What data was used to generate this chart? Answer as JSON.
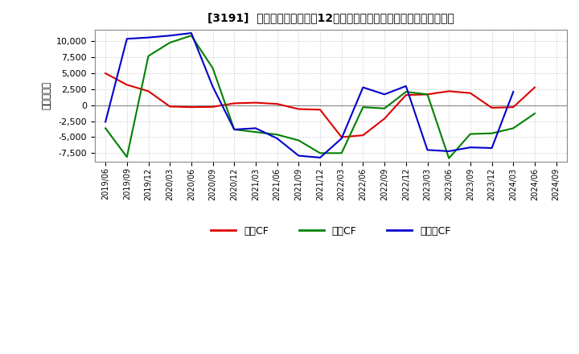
{
  "title": "[3191]  キャッシュフローの12か月移動合計の対前年同期増減額の推移",
  "ylabel": "（百万円）",
  "background_color": "#ffffff",
  "plot_bg_color": "#ffffff",
  "grid_color": "#bbbbbb",
  "ylim": [
    -8800,
    11800
  ],
  "yticks": [
    -7500,
    -5000,
    -2500,
    0,
    2500,
    5000,
    7500,
    10000
  ],
  "x_labels": [
    "2019/06",
    "2019/09",
    "2019/12",
    "2020/03",
    "2020/06",
    "2020/09",
    "2020/12",
    "2021/03",
    "2021/06",
    "2021/09",
    "2021/12",
    "2022/03",
    "2022/06",
    "2022/09",
    "2022/12",
    "2023/03",
    "2023/06",
    "2023/09",
    "2023/12",
    "2024/03",
    "2024/06",
    "2024/09"
  ],
  "series": {
    "営業CF": {
      "color": "#dd0000",
      "values": [
        5000,
        3200,
        2200,
        -200,
        -300,
        -250,
        300,
        400,
        200,
        -600,
        -700,
        -5000,
        -4700,
        -2100,
        1600,
        1700,
        2200,
        1900,
        -400,
        -300,
        2800,
        null
      ]
    },
    "投賃CF": {
      "color": "#008000",
      "values": [
        -3600,
        -8100,
        7700,
        9800,
        10900,
        5800,
        -3800,
        -4200,
        -4600,
        -5500,
        -7500,
        -7500,
        -300,
        -500,
        2100,
        1700,
        -8300,
        -4500,
        -4400,
        -3600,
        -1300,
        null
      ]
    },
    "フリーCF": {
      "color": "#0000cc",
      "values": [
        -2600,
        10400,
        10600,
        10900,
        11300,
        2900,
        -3800,
        -3600,
        -5200,
        -7900,
        -8200,
        -5200,
        2800,
        1700,
        3000,
        -7000,
        -7200,
        -6600,
        -6700,
        2100,
        null,
        null
      ]
    }
  },
  "legend_labels": [
    "営業CF",
    "投賃CF",
    "フリーCF"
  ],
  "legend_colors": [
    "#dd0000",
    "#008000",
    "#0000cc"
  ]
}
